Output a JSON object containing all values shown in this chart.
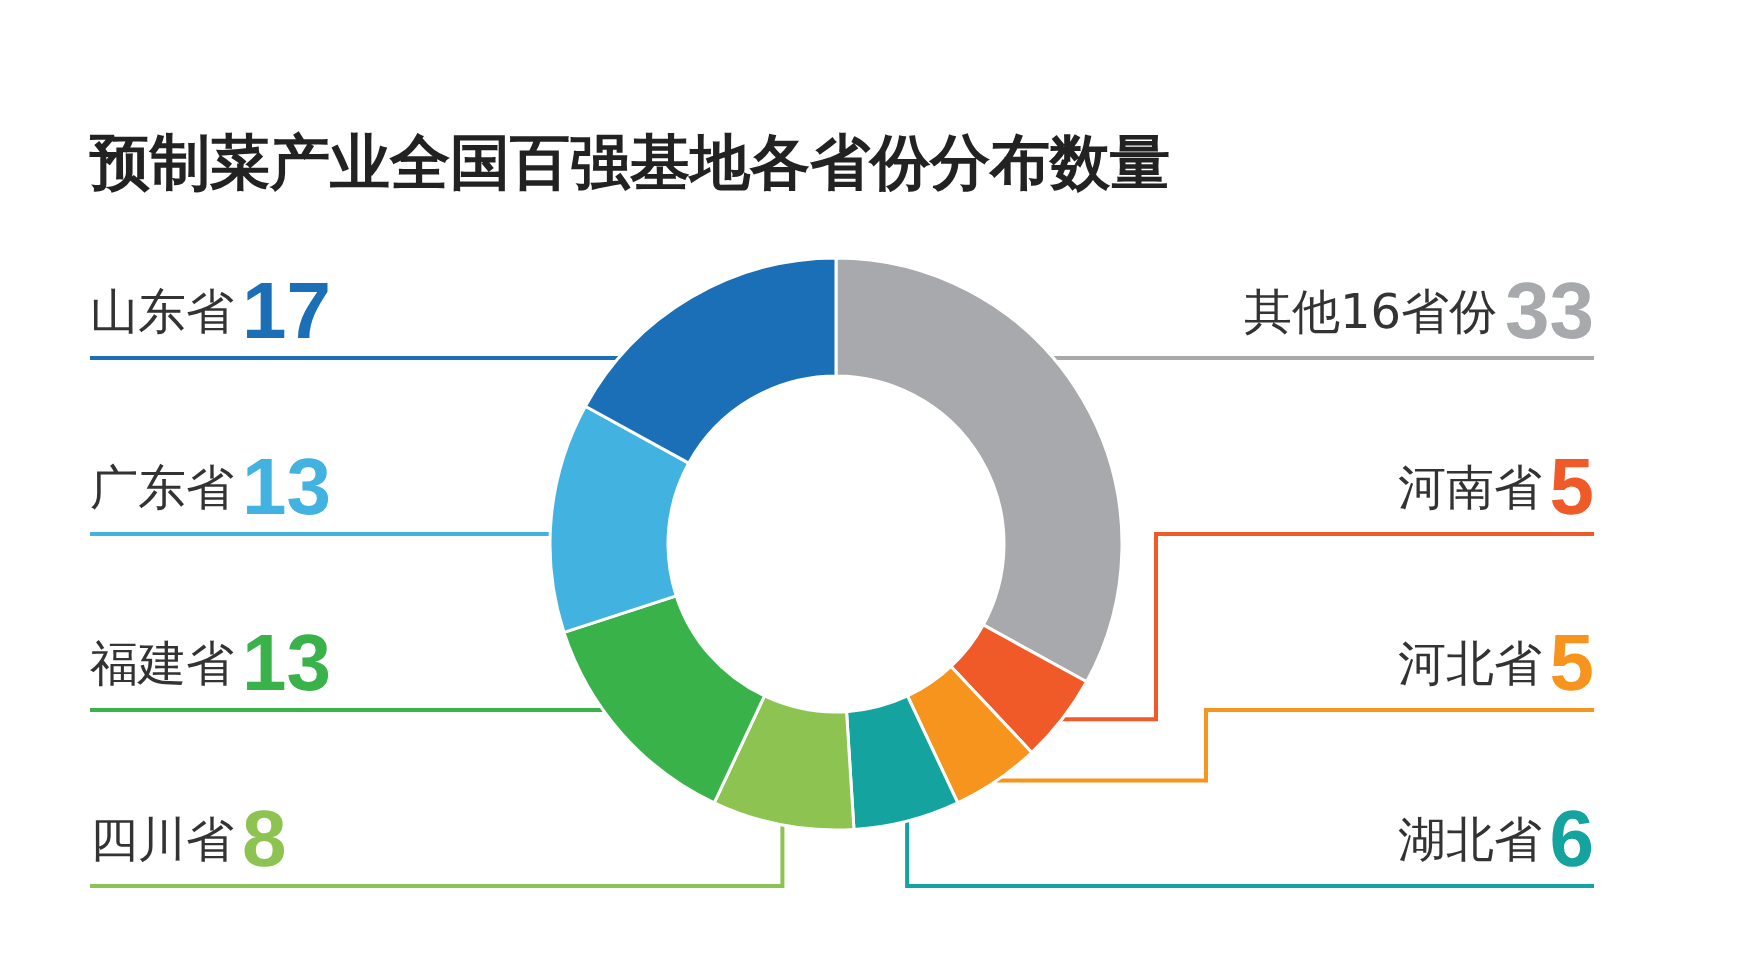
{
  "chart_data": {
    "type": "donut",
    "title": "预制菜产业全国百强基地各省份分布数量",
    "categories": [
      "其他16省份",
      "河南省",
      "河北省",
      "湖北省",
      "四川省",
      "福建省",
      "广东省",
      "山东省"
    ],
    "values": [
      33,
      5,
      5,
      6,
      8,
      13,
      13,
      17
    ],
    "colors": [
      "#a7a9ac",
      "#ef5a28",
      "#f7941d",
      "#15a3a0",
      "#8dc350",
      "#39b24a",
      "#42b2e0",
      "#1a6fb7"
    ],
    "data_labels": true
  }
}
